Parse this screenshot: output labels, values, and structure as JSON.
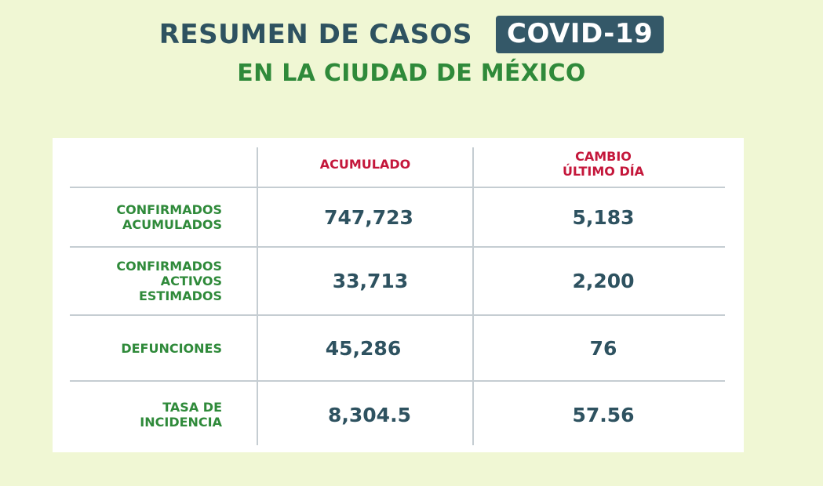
{
  "header": {
    "title": "RESUMEN DE CASOS",
    "badge": "COVID-19",
    "subtitle": "EN LA CIUDAD DE MÉXICO"
  },
  "table": {
    "columns": [
      "ACUMULADO",
      "CAMBIO\nÚLTIMO DÍA"
    ],
    "rows": [
      {
        "label": "CONFIRMADOS\nACUMULADOS",
        "acumulado": "747,723",
        "cambio": "5,183"
      },
      {
        "label": "CONFIRMADOS\nACTIVOS\nESTIMADOS",
        "acumulado": "33,713",
        "cambio": "2,200"
      },
      {
        "label": "DEFUNCIONES",
        "acumulado": "45,286",
        "cambio": "76"
      },
      {
        "label": "TASA DE\nINCIDENCIA",
        "acumulado": "8,304.5",
        "cambio": "57.56"
      }
    ]
  },
  "colors": {
    "background": "#f0f7d4",
    "title": "#2e5260",
    "badge_bg": "#345868",
    "subtitle": "#2f8a3a",
    "header_red": "#c4173b",
    "row_label_green": "#2f8a3a",
    "value_text": "#2e5260"
  }
}
